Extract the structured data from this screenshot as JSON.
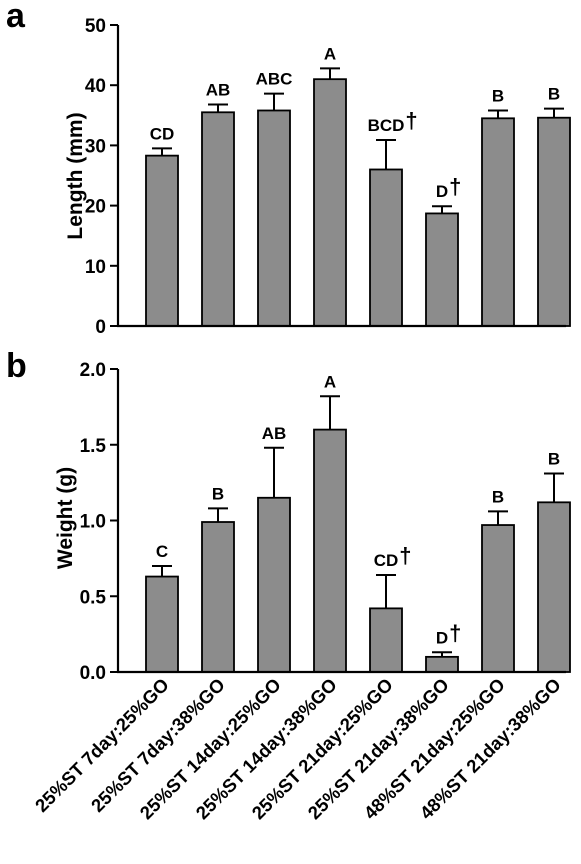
{
  "chart_data": [
    {
      "panel": "a",
      "type": "bar",
      "ylabel": "Length (mm)",
      "ylim": [
        0,
        50
      ],
      "yticks": [
        0,
        10,
        20,
        30,
        40,
        50
      ],
      "values": [
        28.3,
        35.5,
        35.8,
        41.0,
        26.0,
        18.7,
        34.5,
        34.6
      ],
      "errors": [
        1.2,
        1.3,
        2.8,
        1.8,
        4.9,
        1.2,
        1.3,
        1.5
      ],
      "letters": [
        "CD",
        "AB",
        "ABC",
        "A",
        "BCD",
        "D",
        "B",
        "B"
      ],
      "daggers": [
        "",
        "",
        "",
        "",
        "†",
        "†",
        "",
        ""
      ]
    },
    {
      "panel": "b",
      "type": "bar",
      "ylabel": "Weight (g)",
      "ylim": [
        0,
        2.0
      ],
      "yticks": [
        "0.0",
        "0.5",
        "1.0",
        "1.5",
        "2.0"
      ],
      "values": [
        0.63,
        0.99,
        1.15,
        1.6,
        0.42,
        0.1,
        0.97,
        1.12
      ],
      "errors": [
        0.07,
        0.09,
        0.33,
        0.22,
        0.22,
        0.03,
        0.09,
        0.19
      ],
      "letters": [
        "C",
        "B",
        "AB",
        "A",
        "CD",
        "D",
        "B",
        "B"
      ],
      "daggers": [
        "",
        "",
        "",
        "",
        "†",
        "†",
        "",
        ""
      ]
    }
  ],
  "categories": [
    "25%ST 7day:25%GO",
    "25%ST 7day:38%GO",
    "25%ST 14day:25%GO",
    "25%ST 14day:38%GO",
    "25%ST 21day:25%GO",
    "25%ST 21day:38%GO",
    "48%ST 21day:25%GO",
    "48%ST 21day:38%GO"
  ]
}
